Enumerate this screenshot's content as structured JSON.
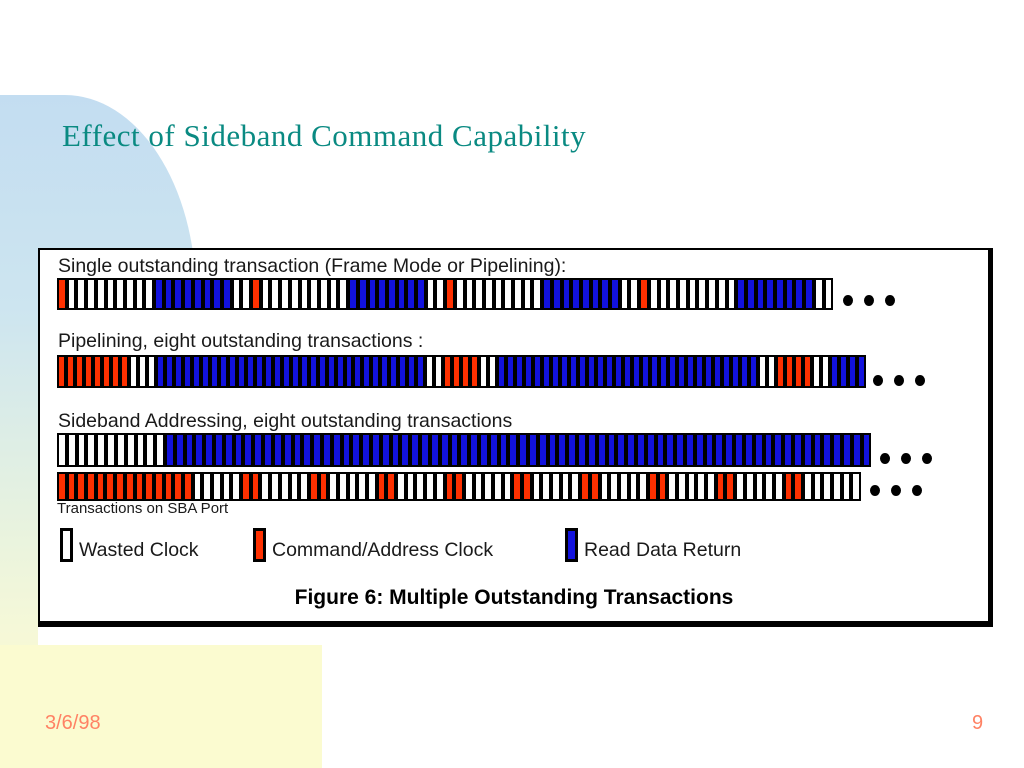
{
  "slide": {
    "title": "Effect of Sideband Command Capability",
    "footer_date": "3/6/98",
    "page_number": "9"
  },
  "figure": {
    "caption": "Figure 6: Multiple Outstanding Transactions",
    "rows": [
      {
        "label": "Single outstanding transaction (Frame Mode or Pipelining):",
        "bars": [
          {
            "pattern": "RWWWWWWWWWBBBBBBBBWWRWWWWWWWWWBBBBBBBBWWRWWWWWWWWWBBBBBBBBWWRWWWWWWWWWBBBBBBBBWW"
          }
        ]
      },
      {
        "label": "Pipelining, eight outstanding transactions :",
        "bars": [
          {
            "pattern": "RRRRRRRRWWWBBBBBBBBBBBBBBBBBBBBBBBBBBBBBBWWRRRRWWBBBBBBBBBBBBBBBBBBBBBBBBBBBBBWWRRRRWWBBBB"
          }
        ]
      },
      {
        "label": "Sideband Addressing, eight outstanding transactions",
        "sublabel": "Transactions on SBA Port",
        "bars": [
          {
            "pattern": "WWWWWWWWWWWBBBBBBBBBBBBBBBBBBBBBBBBBBBBBBBBBBBBBBBBBBBBBBBBBBBBBBBBBBBBBBBBBBBBBBBB"
          },
          {
            "pattern": "RRRRRRRRRRRRRRWWWWWRRWWWWWRRWWWWWRRWWWWWRRWWWWWRRWWWWWRRWWWWWRRWWWWWRRWWWWWRRWWWWWW"
          }
        ]
      }
    ],
    "legend": [
      {
        "label": "Wasted Clock",
        "color": "#ffffff"
      },
      {
        "label": "Command/Address Clock",
        "color": "#ff3000"
      },
      {
        "label": "Read Data Return",
        "color": "#1212dd"
      }
    ]
  },
  "colors": {
    "title_teal": "#0a8a82",
    "command_red": "#ff3000",
    "data_blue": "#1212dd",
    "footer_coral": "#ff8264",
    "bg_blue": "#c3ddf1",
    "bg_yellow": "#fbfbd0"
  }
}
